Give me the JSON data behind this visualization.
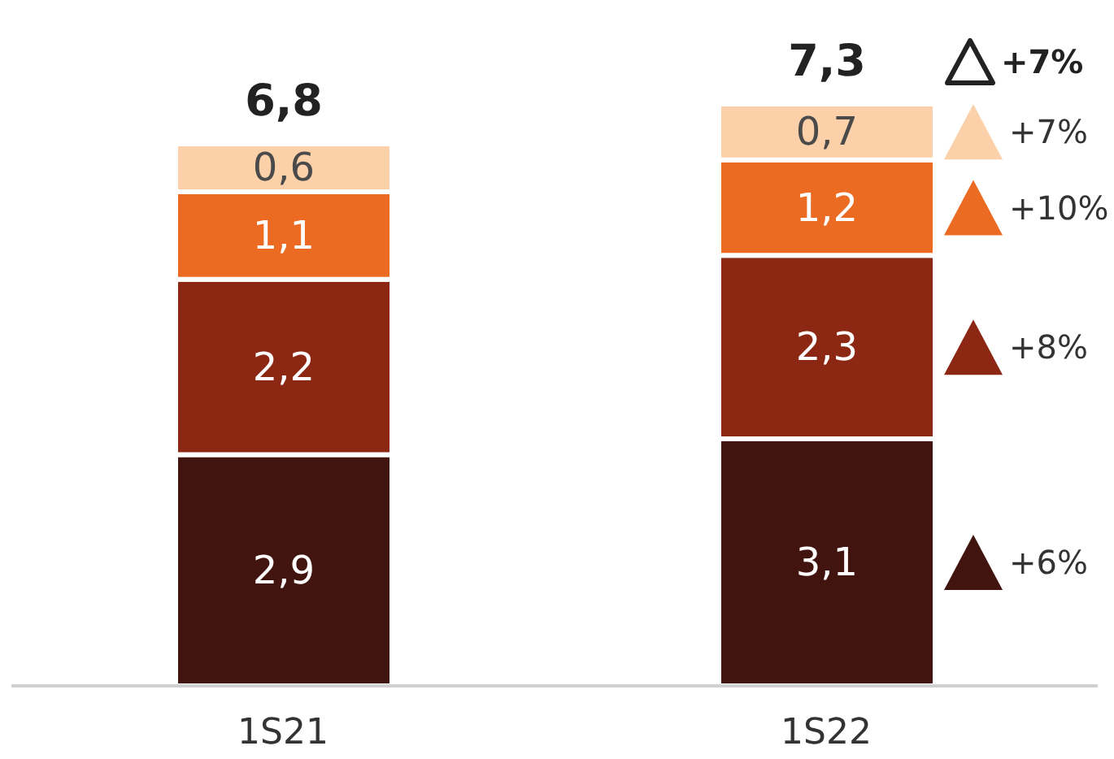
{
  "chart_data": {
    "type": "bar",
    "stacked": true,
    "categories": [
      "1S21",
      "1S22"
    ],
    "series": [
      {
        "color": "#42140f",
        "values": [
          2.9,
          3.1
        ],
        "value_labels": [
          "2,9",
          "3,1"
        ]
      },
      {
        "color": "#8c2714",
        "values": [
          2.2,
          2.3
        ],
        "value_labels": [
          "2,2",
          "2,3"
        ]
      },
      {
        "color": "#ec6b22",
        "values": [
          1.1,
          1.2
        ],
        "value_labels": [
          "1,1",
          "1,2"
        ]
      },
      {
        "color": "#fcd0a8",
        "values": [
          0.6,
          0.7
        ],
        "value_labels": [
          "0,6",
          "0,7"
        ]
      }
    ],
    "totals": [
      "6,8",
      "7,3"
    ],
    "annotations": [
      "+7%",
      "+7%",
      "+10%",
      "+8%",
      "+6%"
    ]
  }
}
